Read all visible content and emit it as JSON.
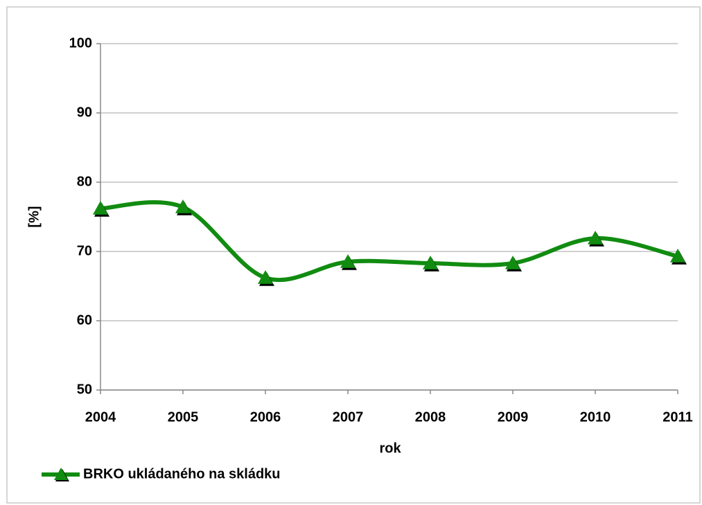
{
  "chart_data": {
    "type": "line",
    "x_label": "rok",
    "y_label": "[%]",
    "categories": [
      "2004",
      "2005",
      "2006",
      "2007",
      "2008",
      "2009",
      "2010",
      "2011"
    ],
    "series": [
      {
        "name": "BRKO ukládaného na skládku",
        "color": "#118c11",
        "values": [
          76.2,
          76.4,
          66.2,
          68.5,
          68.3,
          68.3,
          71.9,
          69.3
        ]
      }
    ],
    "ylim": [
      50,
      100
    ],
    "yticks": [
      50,
      60,
      70,
      80,
      90,
      100
    ],
    "grid": true,
    "smooth": true,
    "legend": "bottom-left"
  }
}
